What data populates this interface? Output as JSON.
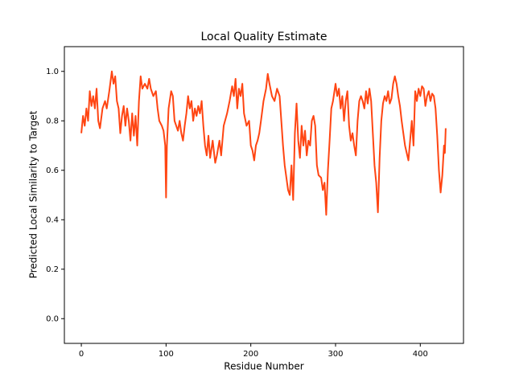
{
  "chart_data": {
    "type": "line",
    "title": "Local Quality Estimate",
    "xlabel": "Residue Number",
    "ylabel": "Predicted Local Similarity to Target",
    "xlim": [
      -20,
      451
    ],
    "ylim": [
      -0.1,
      1.1
    ],
    "xticks": [
      0,
      100,
      200,
      300,
      400
    ],
    "yticks": [
      {
        "value": 0,
        "label": "0.0"
      },
      0.2,
      0.4,
      0.6,
      0.8,
      {
        "value": 1,
        "label": "1.0"
      }
    ],
    "series": [
      {
        "color": "#ff4512",
        "x": [
          0,
          2,
          4,
          6,
          8,
          10,
          12,
          14,
          16,
          18,
          20,
          22,
          25,
          28,
          30,
          33,
          36,
          38,
          40,
          42,
          44,
          46,
          48,
          50,
          52,
          54,
          56,
          58,
          60,
          62,
          64,
          66,
          68,
          70,
          72,
          75,
          78,
          80,
          82,
          85,
          88,
          90,
          92,
          95,
          97,
          99,
          100,
          101,
          103,
          106,
          108,
          110,
          112,
          114,
          116,
          118,
          120,
          122,
          124,
          126,
          128,
          130,
          132,
          134,
          136,
          138,
          140,
          142,
          144,
          146,
          148,
          150,
          152,
          155,
          158,
          160,
          163,
          165,
          168,
          172,
          175,
          178,
          180,
          182,
          184,
          186,
          188,
          190,
          192,
          195,
          198,
          200,
          202,
          204,
          206,
          208,
          210,
          212,
          215,
          218,
          220,
          222,
          225,
          228,
          231,
          234,
          236,
          238,
          240,
          242,
          244,
          246,
          248,
          250,
          252,
          254,
          256,
          258,
          260,
          262,
          264,
          266,
          268,
          270,
          272,
          274,
          276,
          278,
          280,
          283,
          285,
          287,
          289,
          291,
          293,
          295,
          297,
          300,
          302,
          304,
          306,
          308,
          310,
          312,
          314,
          316,
          318,
          320,
          322,
          324,
          326,
          328,
          330,
          332,
          334,
          336,
          338,
          340,
          342,
          344,
          346,
          348,
          350,
          352,
          354,
          356,
          358,
          360,
          362,
          364,
          366,
          368,
          370,
          372,
          374,
          376,
          378,
          380,
          382,
          384,
          386,
          388,
          390,
          392,
          394,
          396,
          398,
          400,
          402,
          404,
          406,
          408,
          410,
          412,
          414,
          416,
          418,
          420,
          422,
          424,
          426,
          428,
          429,
          430
        ],
        "values": [
          0.75,
          0.82,
          0.78,
          0.85,
          0.8,
          0.92,
          0.86,
          0.9,
          0.85,
          0.93,
          0.8,
          0.77,
          0.85,
          0.88,
          0.85,
          0.92,
          1.0,
          0.95,
          0.98,
          0.88,
          0.85,
          0.75,
          0.82,
          0.86,
          0.78,
          0.85,
          0.8,
          0.72,
          0.83,
          0.74,
          0.82,
          0.7,
          0.88,
          0.98,
          0.93,
          0.95,
          0.93,
          0.97,
          0.93,
          0.9,
          0.92,
          0.85,
          0.8,
          0.78,
          0.76,
          0.7,
          0.49,
          0.7,
          0.85,
          0.92,
          0.9,
          0.8,
          0.78,
          0.76,
          0.8,
          0.75,
          0.72,
          0.78,
          0.83,
          0.9,
          0.85,
          0.88,
          0.8,
          0.85,
          0.82,
          0.86,
          0.83,
          0.88,
          0.78,
          0.7,
          0.66,
          0.74,
          0.65,
          0.72,
          0.63,
          0.66,
          0.72,
          0.66,
          0.78,
          0.83,
          0.88,
          0.94,
          0.9,
          0.97,
          0.85,
          0.93,
          0.9,
          0.95,
          0.83,
          0.78,
          0.8,
          0.7,
          0.68,
          0.64,
          0.7,
          0.72,
          0.75,
          0.8,
          0.88,
          0.93,
          0.99,
          0.95,
          0.9,
          0.88,
          0.93,
          0.9,
          0.8,
          0.7,
          0.62,
          0.57,
          0.52,
          0.5,
          0.62,
          0.48,
          0.75,
          0.87,
          0.72,
          0.65,
          0.78,
          0.7,
          0.76,
          0.66,
          0.72,
          0.7,
          0.8,
          0.82,
          0.78,
          0.62,
          0.58,
          0.57,
          0.52,
          0.55,
          0.42,
          0.6,
          0.72,
          0.85,
          0.88,
          0.95,
          0.9,
          0.93,
          0.85,
          0.9,
          0.8,
          0.88,
          0.92,
          0.78,
          0.72,
          0.75,
          0.7,
          0.66,
          0.8,
          0.88,
          0.9,
          0.88,
          0.85,
          0.92,
          0.87,
          0.93,
          0.88,
          0.75,
          0.62,
          0.55,
          0.43,
          0.65,
          0.8,
          0.87,
          0.9,
          0.88,
          0.92,
          0.87,
          0.89,
          0.95,
          0.98,
          0.95,
          0.9,
          0.86,
          0.8,
          0.75,
          0.7,
          0.67,
          0.64,
          0.72,
          0.8,
          0.7,
          0.92,
          0.88,
          0.93,
          0.9,
          0.94,
          0.93,
          0.86,
          0.9,
          0.92,
          0.88,
          0.91,
          0.9,
          0.85,
          0.74,
          0.6,
          0.51,
          0.58,
          0.7,
          0.67,
          0.77
        ]
      }
    ]
  }
}
